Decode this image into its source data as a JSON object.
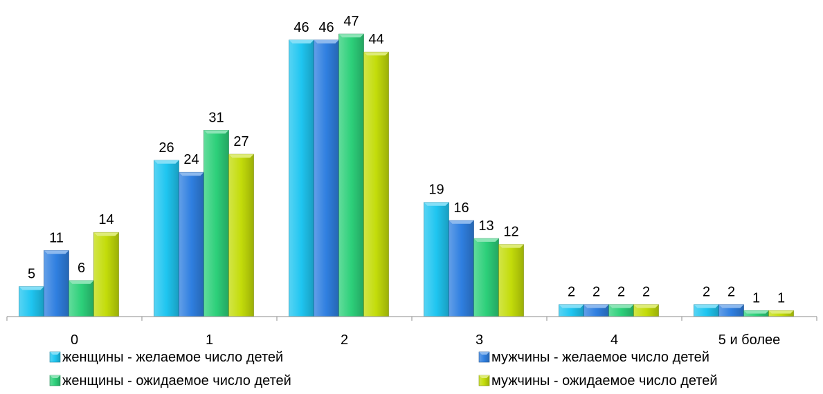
{
  "chart_data": {
    "type": "bar",
    "categories": [
      "0",
      "1",
      "2",
      "3",
      "4",
      "5 и более"
    ],
    "series": [
      {
        "name": "женщины - желаемое число детей",
        "values": [
          5,
          26,
          46,
          19,
          2,
          2
        ],
        "color": "#1FC5F0"
      },
      {
        "name": "мужчины - желаемое число детей",
        "values": [
          11,
          24,
          46,
          16,
          2,
          2
        ],
        "color": "#2F7FE0"
      },
      {
        "name": "женщины - ожидаемое число детей",
        "values": [
          6,
          31,
          47,
          13,
          2,
          1
        ],
        "color": "#2DD07A"
      },
      {
        "name": "мужчины - ожидаемое число детей",
        "values": [
          14,
          27,
          44,
          12,
          2,
          1
        ],
        "color": "#C3DC0A"
      }
    ],
    "ylim": [
      0,
      52
    ],
    "grid": false,
    "legend_position": "bottom",
    "data_labels": true
  }
}
